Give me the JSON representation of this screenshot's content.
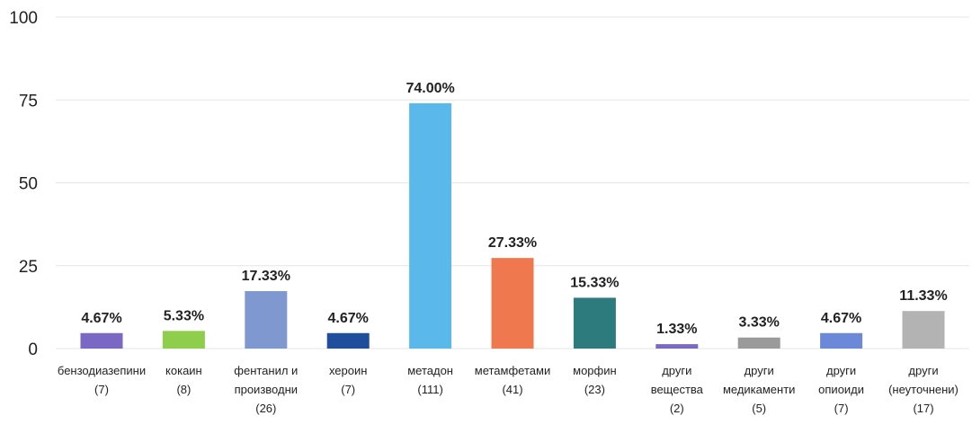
{
  "chart_data": {
    "type": "bar",
    "title": "",
    "xlabel": "",
    "ylabel": "",
    "ylim": [
      0,
      100
    ],
    "yticks": [
      0,
      25,
      50,
      75,
      100
    ],
    "grid": true,
    "categories": [
      [
        "бензодиазепини",
        "(7)"
      ],
      [
        "кокаин",
        "(8)"
      ],
      [
        "фентанил и",
        "производни",
        "(26)"
      ],
      [
        "хероин",
        "(7)"
      ],
      [
        "метадон",
        "(111)"
      ],
      [
        "метамфетами",
        "(41)"
      ],
      [
        "морфин",
        "(23)"
      ],
      [
        "други",
        "вещества",
        "(2)"
      ],
      [
        "други",
        "медикаменти",
        "(5)"
      ],
      [
        "други",
        "опиоиди",
        "(7)"
      ],
      [
        "други",
        "(неуточнени)",
        "(17)"
      ]
    ],
    "values": [
      4.67,
      5.33,
      17.33,
      4.67,
      74.0,
      27.33,
      15.33,
      1.33,
      3.33,
      4.67,
      11.33
    ],
    "data_labels": [
      "4.67%",
      "5.33%",
      "17.33%",
      "4.67%",
      "74.00%",
      "27.33%",
      "15.33%",
      "1.33%",
      "3.33%",
      "4.67%",
      "11.33%"
    ],
    "colors": [
      "#7b68c4",
      "#8fcd4c",
      "#7f98cf",
      "#1f4e9c",
      "#5bb8ea",
      "#f0784f",
      "#2e7b7d",
      "#7b68c4",
      "#9a9a9a",
      "#6c88d8",
      "#b3b3b3"
    ]
  }
}
